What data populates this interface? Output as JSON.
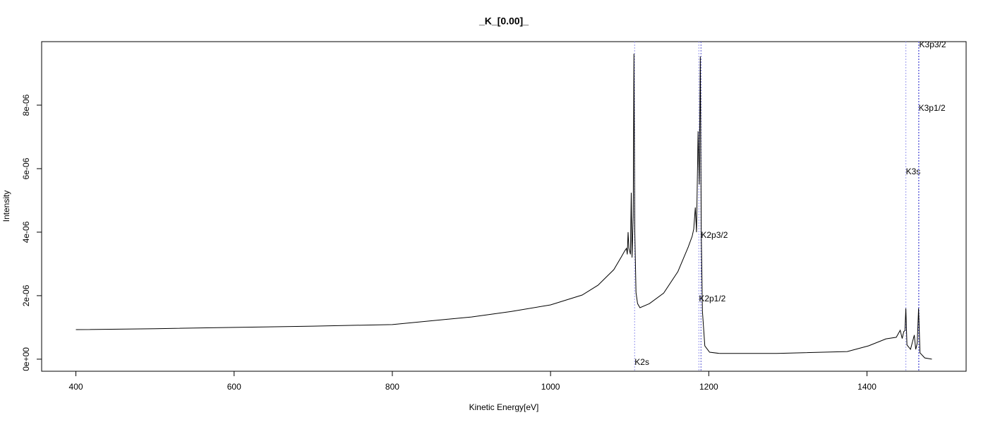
{
  "chart_data": {
    "type": "line",
    "title": "_K_[0.00]_",
    "x_label": "Kinetic Energy[eV]",
    "y_label": "Intensity",
    "color": "#000000",
    "xlim": [
      356.7,
      1525.3
    ],
    "ylim": [
      -3.8e-07,
      1e-05
    ],
    "xticks": [
      400,
      600,
      800,
      1000,
      1200,
      1400
    ],
    "yticks": [
      {
        "value": 0,
        "label": "0e+00"
      },
      {
        "value": 2e-06,
        "label": "2e-06"
      },
      {
        "value": 4e-06,
        "label": "4e-06"
      },
      {
        "value": 6e-06,
        "label": "6e-06"
      },
      {
        "value": 8e-06,
        "label": "8e-06"
      }
    ],
    "x": [
      400,
      500,
      600,
      700,
      800,
      900,
      950,
      1000,
      1040,
      1060,
      1080,
      1089,
      1094,
      1096,
      1097,
      1098,
      1099,
      1101,
      1102,
      1103,
      1104.5,
      1105.4,
      1106.5,
      1108,
      1110,
      1113,
      1125,
      1143,
      1161,
      1174,
      1179,
      1181,
      1183,
      1184.5,
      1186.5,
      1188,
      1189.3,
      1190.5,
      1192,
      1195,
      1201,
      1214,
      1286,
      1375,
      1402,
      1424,
      1437,
      1442,
      1444.5,
      1446.5,
      1448,
      1449.1,
      1450.5,
      1455,
      1459.8,
      1461.6,
      1463.5,
      1465.2,
      1467,
      1473,
      1482
    ],
    "values": [
      9.3e-07,
      9.6e-07,
      1e-06,
      1.04e-06,
      1.09e-06,
      1.33e-06,
      1.5e-06,
      1.71e-06,
      2.02e-06,
      2.33e-06,
      2.82e-06,
      3.2e-06,
      3.42e-06,
      3.49e-06,
      3.3e-06,
      4e-06,
      3.5e-06,
      3.3e-06,
      5.24e-06,
      3.2e-06,
      4.5e-06,
      9.62e-06,
      4e-06,
      2.1e-06,
      1.75e-06,
      1.62e-06,
      1.75e-06,
      2.08e-06,
      2.76e-06,
      3.53e-06,
      3.87e-06,
      4.1e-06,
      4.78e-06,
      4e-06,
      7.18e-06,
      5.5e-06,
      9.53e-06,
      4e-06,
      1.5e-06,
      4.2e-07,
      2.2e-07,
      1.8e-07,
      1.8e-07,
      2.4e-07,
      4.2e-07,
      6.4e-07,
      6.9e-07,
      9.1e-07,
      6.5e-07,
      8.7e-07,
      9e-07,
      1.6e-06,
      4.5e-07,
      3.1e-07,
      7.6e-07,
      3.1e-07,
      5e-07,
      1.6e-06,
      2e-07,
      4e-08,
      0
    ],
    "markers": [
      {
        "label": "K2s",
        "x": 1106.3,
        "color": "#a9a9f0"
      },
      {
        "label": "K2p1/2",
        "x": 1187.5,
        "color": "#a9a9f0"
      },
      {
        "label": "K2p3/2",
        "x": 1190.2,
        "color": "#6f6fd8"
      },
      {
        "label": "K3s",
        "x": 1449.1,
        "color": "#a9a9f0"
      },
      {
        "label": "K3p1/2",
        "x": 1465.2,
        "color": "#6f6fd8"
      },
      {
        "label": "K3p3/2",
        "x": 1466.0,
        "color": "#a9a9f0"
      }
    ]
  }
}
